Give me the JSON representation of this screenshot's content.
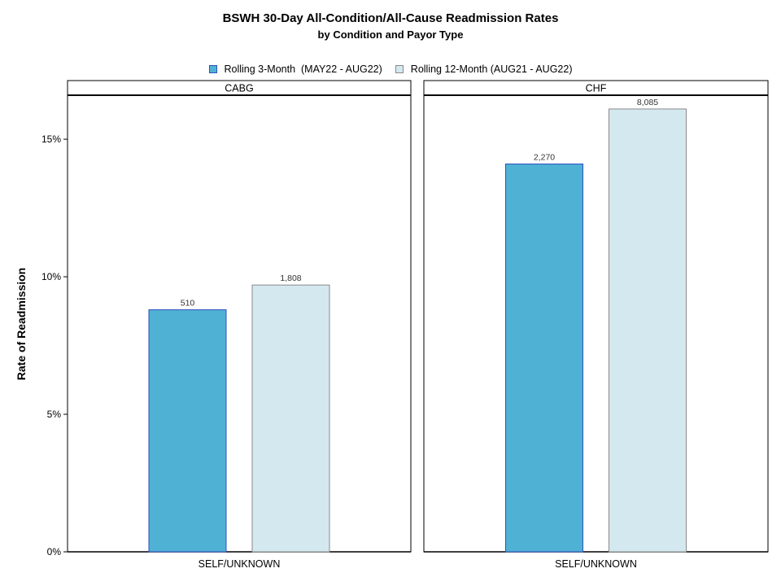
{
  "chart_data": {
    "type": "bar",
    "title": "BSWH 30-Day All-Condition/All-Cause Readmission Rates",
    "subtitle": "by Condition and Payor Type",
    "ylabel": "Rate of Readmission",
    "xlabel": "",
    "ylim": [
      0,
      16.6
    ],
    "yticks": [
      0,
      5,
      10,
      15
    ],
    "ytick_labels": [
      "0%",
      "5%",
      "10%",
      "15%"
    ],
    "legend_position": "top-center",
    "grid": false,
    "series": [
      {
        "name": "Rolling 3-Month  (MAY22 - AUG22)",
        "fill": "#4fb1d3",
        "stroke": "#2f4fc0"
      },
      {
        "name": "Rolling 12-Month (AUG21 - AUG22)",
        "fill": "#d4e8ef",
        "stroke": "#8a8a8a"
      }
    ],
    "panels": [
      {
        "name": "CABG",
        "category": "SELF/UNKNOWN",
        "values": [
          8.8,
          9.7
        ],
        "labels": [
          "510",
          "1,808"
        ]
      },
      {
        "name": "CHF",
        "category": "SELF/UNKNOWN",
        "values": [
          14.1,
          16.1
        ],
        "labels": [
          "2,270",
          "8,085"
        ]
      }
    ]
  }
}
